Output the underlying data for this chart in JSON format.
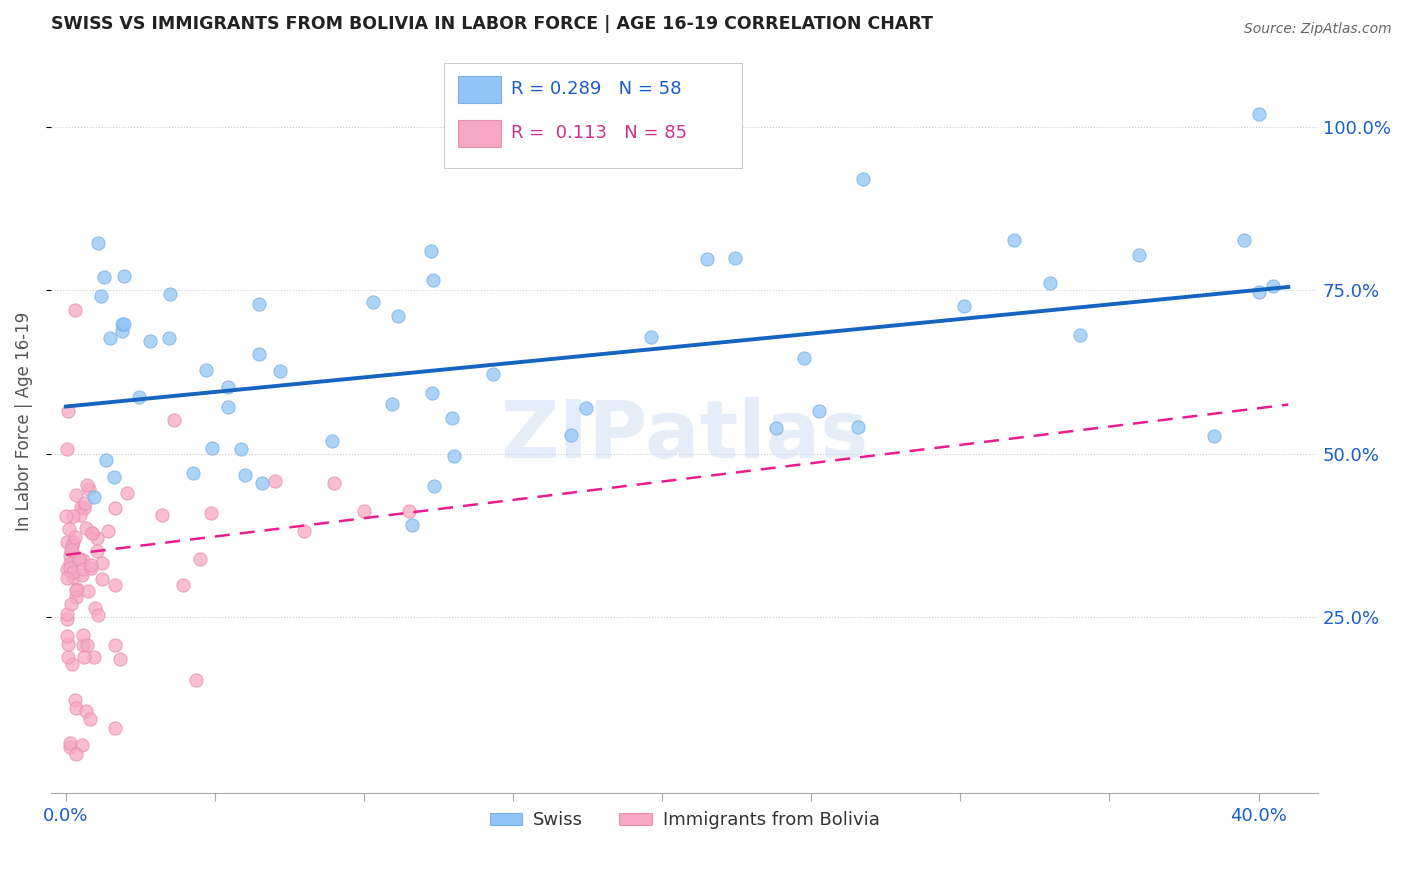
{
  "title": "SWISS VS IMMIGRANTS FROM BOLIVIA IN LABOR FORCE | AGE 16-19 CORRELATION CHART",
  "source": "Source: ZipAtlas.com",
  "ylabel_label": "In Labor Force | Age 16-19",
  "x_tick_positions": [
    0.0,
    0.05,
    0.1,
    0.15,
    0.2,
    0.25,
    0.3,
    0.35,
    0.4
  ],
  "x_tick_labels": [
    "0.0%",
    "",
    "",
    "",
    "",
    "",
    "",
    "",
    "40.0%"
  ],
  "y_tick_positions": [
    0.25,
    0.5,
    0.75,
    1.0
  ],
  "y_tick_labels": [
    "25.0%",
    "50.0%",
    "75.0%",
    "100.0%"
  ],
  "xlim": [
    -0.005,
    0.42
  ],
  "ylim": [
    -0.02,
    1.12
  ],
  "watermark": "ZIPatlas",
  "swiss_color": "#92C5F5",
  "bolivia_color": "#F7A8C4",
  "trend_swiss_color": "#1565C0",
  "trend_bolivia_color": "#E91E8C",
  "swiss_color_edge": "#7ab0e8",
  "bolivia_color_edge": "#e890b0",
  "swiss_r": 0.289,
  "swiss_n": 58,
  "bolivia_r": 0.113,
  "bolivia_n": 85,
  "swiss_trend_x0": 0.0,
  "swiss_trend_y0": 0.572,
  "swiss_trend_x1": 0.41,
  "swiss_trend_y1": 0.755,
  "bolivia_trend_x0": 0.0,
  "bolivia_trend_y0": 0.345,
  "bolivia_trend_x1": 0.41,
  "bolivia_trend_y1": 0.575
}
